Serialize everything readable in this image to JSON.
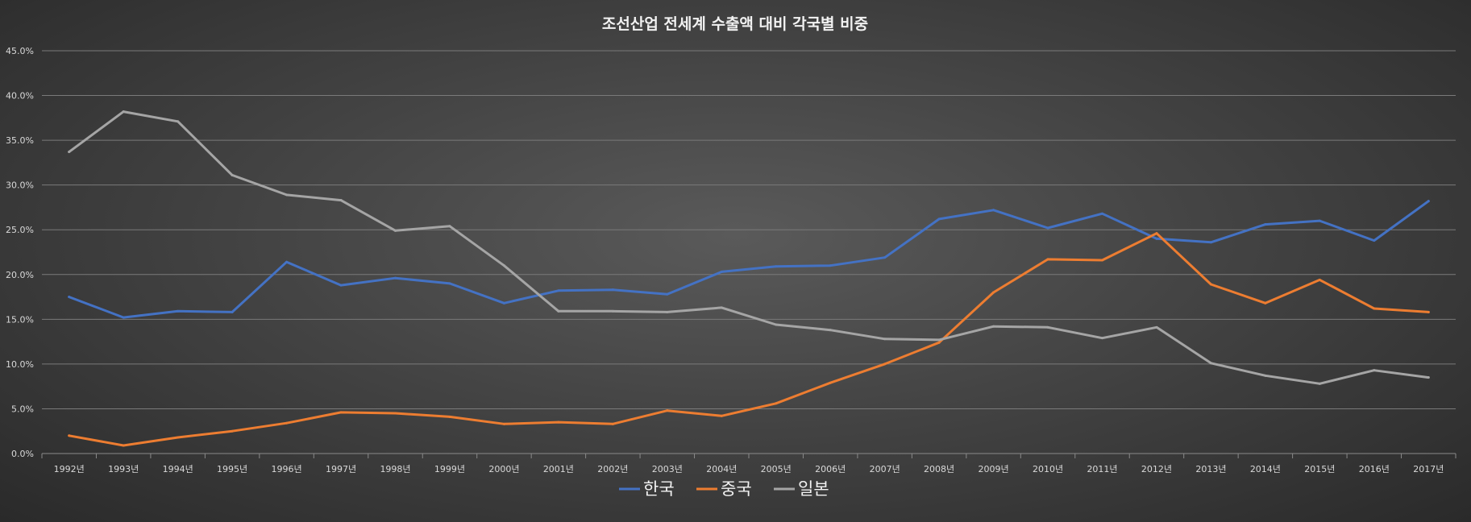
{
  "chart_data": {
    "type": "line",
    "title": "조선산업 전세계 수출액 대비 각국별 비중",
    "xlabel": "",
    "ylabel": "",
    "ylim": [
      0,
      45
    ],
    "ytick_values": [
      0,
      5,
      10,
      15,
      20,
      25,
      30,
      35,
      40,
      45
    ],
    "ytick_labels": [
      "0.0%",
      "5.0%",
      "10.0%",
      "15.0%",
      "20.0%",
      "25.0%",
      "30.0%",
      "35.0%",
      "40.0%",
      "45.0%"
    ],
    "grid": true,
    "legend_position": "bottom",
    "categories": [
      "1992년",
      "1993년",
      "1994년",
      "1995년",
      "1996년",
      "1997년",
      "1998년",
      "1999년",
      "2000년",
      "2001년",
      "2002년",
      "2003년",
      "2004년",
      "2005년",
      "2006년",
      "2007년",
      "2008년",
      "2009년",
      "2010년",
      "2011년",
      "2012년",
      "2013년",
      "2014년",
      "2015년",
      "2016년",
      "2017년"
    ],
    "series": [
      {
        "name": "한국",
        "color": "#4472c4",
        "values": [
          17.5,
          15.2,
          15.9,
          15.8,
          21.4,
          18.8,
          19.6,
          19.0,
          16.8,
          18.2,
          18.3,
          17.8,
          20.3,
          20.9,
          21.0,
          21.9,
          26.2,
          27.2,
          25.2,
          26.8,
          24.0,
          23.6,
          25.6,
          26.0,
          23.8,
          28.2
        ]
      },
      {
        "name": "중국",
        "color": "#ed7d31",
        "values": [
          2.0,
          0.9,
          1.8,
          2.5,
          3.4,
          4.6,
          4.5,
          4.1,
          3.3,
          3.5,
          3.3,
          4.8,
          4.2,
          5.6,
          7.9,
          10.0,
          12.4,
          18.0,
          21.7,
          21.6,
          24.6,
          18.9,
          16.8,
          19.4,
          16.2,
          15.8
        ]
      },
      {
        "name": "일본",
        "color": "#a5a5a5",
        "values": [
          33.7,
          38.2,
          37.1,
          31.1,
          28.9,
          28.3,
          24.9,
          25.4,
          21.0,
          15.9,
          15.9,
          15.8,
          16.3,
          14.4,
          13.8,
          12.8,
          12.7,
          14.2,
          14.1,
          12.9,
          14.1,
          10.1,
          8.7,
          7.8,
          9.3,
          8.5
        ]
      }
    ]
  }
}
